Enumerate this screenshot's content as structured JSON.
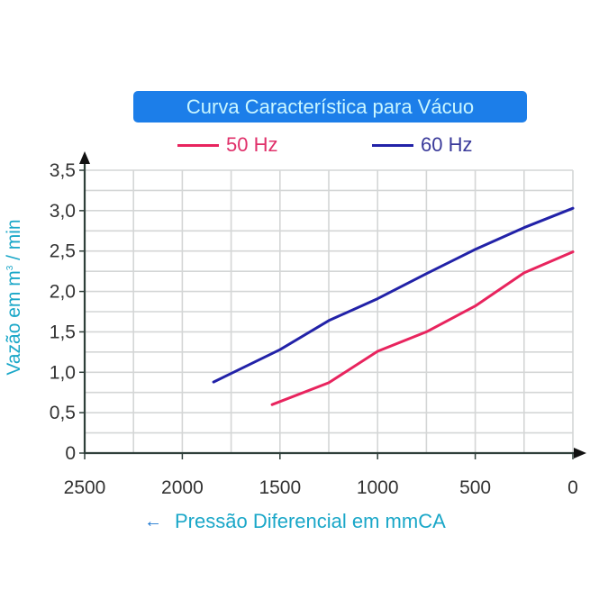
{
  "chart_data": {
    "type": "line",
    "title": "Curva Característica para Vácuo",
    "xlabel": "Pressão Diferencial em mmCA",
    "xlabel_arrow": "←",
    "ylabel_main": "Vazão em m",
    "ylabel_sup": "3",
    "ylabel_tail": " / min",
    "xlim": [
      2500,
      0
    ],
    "ylim": [
      0,
      3.5
    ],
    "x_reversed": true,
    "grid": true,
    "x_grid_step": 250,
    "y_grid_step": 0.25,
    "x_ticks": [
      2500,
      2000,
      1500,
      1000,
      500,
      0
    ],
    "x_tick_labels": [
      "2500",
      "2000",
      "1500",
      "1000",
      "500",
      "0"
    ],
    "y_ticks": [
      0,
      0.5,
      1.0,
      1.5,
      2.0,
      2.5,
      3.0,
      3.5
    ],
    "y_tick_labels": [
      "0",
      "0,5",
      "1,0",
      "1,5",
      "2,0",
      "2,5",
      "3,0",
      "3,5"
    ],
    "legend_position": "top",
    "series": [
      {
        "name": "50 Hz",
        "color": "#e8245e",
        "label_color": "#e0306a",
        "x": [
          1540,
          1250,
          1000,
          750,
          500,
          250,
          0
        ],
        "values": [
          0.6,
          0.87,
          1.26,
          1.5,
          1.82,
          2.23,
          2.49
        ]
      },
      {
        "name": "60 Hz",
        "color": "#2222a8",
        "label_color": "#3a3a9a",
        "x": [
          1840,
          1500,
          1250,
          1000,
          750,
          500,
          250,
          0
        ],
        "values": [
          0.88,
          1.28,
          1.64,
          1.91,
          2.22,
          2.52,
          2.79,
          3.03
        ]
      }
    ]
  },
  "colors": {
    "title_bg": "#1c7ee9",
    "title_text": "#c9f6ff",
    "axis_label": "#1aa7c8",
    "axis_line": "#2f3f3a",
    "grid": "#d4d6d6",
    "tick_text": "#333333"
  }
}
